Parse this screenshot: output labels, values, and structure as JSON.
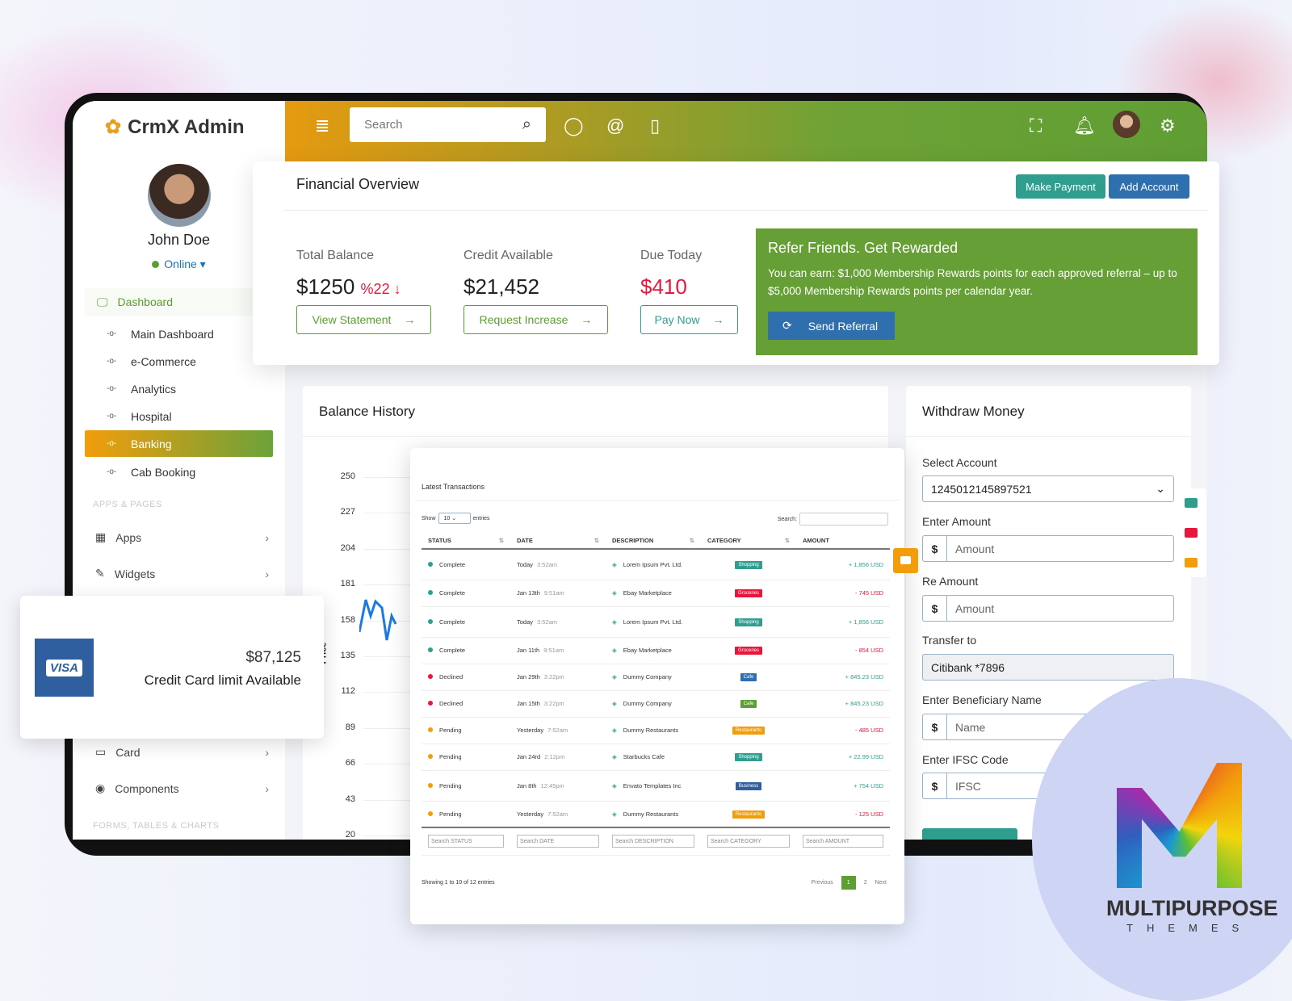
{
  "brand": {
    "name": "CrmX Admin"
  },
  "user": {
    "name": "John Doe",
    "status": "Online"
  },
  "sidebar": {
    "dashboard": "Dashboard",
    "sub_items": [
      "Main Dashboard",
      "e-Commerce",
      "Analytics",
      "Hospital",
      "Banking",
      "Cab Booking"
    ],
    "active": "Banking",
    "section_apps": "APPS & PAGES",
    "items": [
      {
        "label": "Apps",
        "icon": "grid-icon"
      },
      {
        "label": "Widgets",
        "icon": "edit-icon"
      },
      {
        "label": "Card",
        "icon": "card-icon"
      },
      {
        "label": "Components",
        "icon": "eye-icon"
      }
    ],
    "section_forms": "FORMS, TABLES & CHARTS"
  },
  "header": {
    "search_placeholder": "Search"
  },
  "financial": {
    "title": "Financial Overview",
    "make_payment": "Make Payment",
    "add_account": "Add Account",
    "stats": [
      {
        "label": "Total Balance",
        "value": "$1250",
        "change": "%22",
        "action": "View Statement"
      },
      {
        "label": "Credit Available",
        "value": "$21,452",
        "action": "Request Increase"
      },
      {
        "label": "Due Today",
        "value": "$410",
        "action": "Pay Now"
      }
    ],
    "refer": {
      "title": "Refer Friends. Get Rewarded",
      "text": "You can earn: $1,000 Membership Rewards points for each approved referral – up to $5,000 Membership Rewards points per calendar year.",
      "button": "Send Referral"
    }
  },
  "balance_history": {
    "title": "Balance History",
    "ylabel": "Price",
    "yticks": [
      "250",
      "227",
      "204",
      "181",
      "158",
      "135",
      "112",
      "89",
      "66",
      "43",
      "20"
    ]
  },
  "visa_card": {
    "brand": "VISA",
    "amount": "$87,125",
    "label": "Credit Card limit Available"
  },
  "transactions": {
    "title": "Latest Transactions",
    "show": "Show",
    "entries_value": "10",
    "entries": "entries",
    "search_label": "Search:",
    "columns": [
      "STATUS",
      "DATE",
      "DESCRIPTION",
      "CATEGORY",
      "AMOUNT"
    ],
    "rows": [
      {
        "status": "Complete",
        "date": "Today",
        "time": "3:52am",
        "desc": "Lorem Ipsum Pvt. Ltd.",
        "cat": "Shopping",
        "amount": "+ 1,856 USD"
      },
      {
        "status": "Complete",
        "date": "Jan 13th",
        "time": "9:51am",
        "desc": "Ebay Marketplace",
        "cat": "Groceries",
        "amount": "- 745 USD"
      },
      {
        "status": "Complete",
        "date": "Today",
        "time": "3:52am",
        "desc": "Lorem Ipsum Pvt. Ltd.",
        "cat": "Shopping",
        "amount": "+ 1,856 USD"
      },
      {
        "status": "Complete",
        "date": "Jan 11th",
        "time": "9:51am",
        "desc": "Ebay Marketplace",
        "cat": "Groceries",
        "amount": "- 854 USD"
      },
      {
        "status": "Declined",
        "date": "Jan 29th",
        "time": "3:22pm",
        "desc": "Dummy Company",
        "cat": "Cafe",
        "amount": "+ 845.23 USD"
      },
      {
        "status": "Declined",
        "date": "Jan 15th",
        "time": "3:22pm",
        "desc": "Dummy Company",
        "cat": "Cafe",
        "amount": "+ 845.23 USD"
      },
      {
        "status": "Pending",
        "date": "Yesterday",
        "time": "7:52am",
        "desc": "Dummy Restaurants",
        "cat": "Restaurants",
        "amount": "- 485 USD"
      },
      {
        "status": "Pending",
        "date": "Jan 24rd",
        "time": "2:12pm",
        "desc": "Starbucks Cafe",
        "cat": "Shopping",
        "amount": "+ 22.99 USD"
      },
      {
        "status": "Pending",
        "date": "Jan 8th",
        "time": "12:45pm",
        "desc": "Envato Templates Inc",
        "cat": "Business",
        "amount": "+ 754 USD"
      },
      {
        "status": "Pending",
        "date": "Yesterday",
        "time": "7:52am",
        "desc": "Dummy Restaurants",
        "cat": "Restaurants",
        "amount": "- 125 USD"
      }
    ],
    "search_placeholders": [
      "Search STATUS",
      "Search DATE",
      "Search DESCRIPTION",
      "Search CATEGORY",
      "Search AMOUNT"
    ],
    "info": "Showing 1 to 10 of 12 entries",
    "pagination": {
      "prev": "Previous",
      "pages": [
        "1",
        "2"
      ],
      "next": "Next"
    }
  },
  "withdraw": {
    "title": "Withdraw Money",
    "select_label": "Select Account",
    "select_value": "1245012145897521",
    "amount_label": "Enter Amount",
    "amount_placeholder": "Amount",
    "re_label": "Re Amount",
    "re_placeholder": "Amount",
    "transfer_label": "Transfer to",
    "transfer_value": "Citibank *7896",
    "name_label": "Enter Beneficiary Name",
    "name_placeholder": "Name",
    "ifsc_label": "Enter IFSC Code",
    "ifsc_placeholder": "IFSC",
    "currency": "$"
  },
  "watermark": {
    "line1": "MULTIPURPOSE",
    "line2": "THEMES"
  },
  "colors": {
    "green": "#5f9e34",
    "orange": "#f29d0c",
    "teal": "#2f9e8f",
    "blue": "#2f6fae",
    "red": "#e8163c"
  }
}
